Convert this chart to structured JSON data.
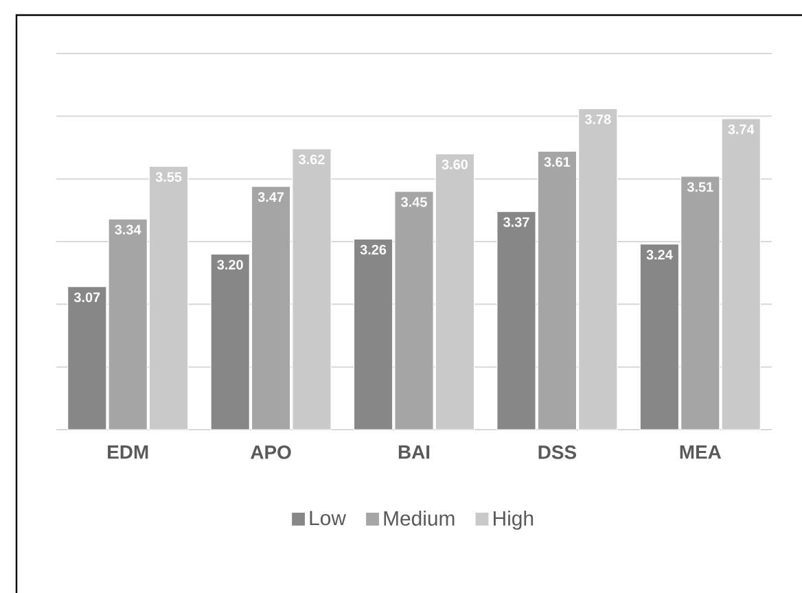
{
  "chart_data": {
    "type": "bar",
    "categories": [
      "EDM",
      "APO",
      "BAI",
      "DSS",
      "MEA"
    ],
    "series": [
      {
        "name": "Low",
        "color": "#878787",
        "values": [
          3.07,
          3.2,
          3.26,
          3.37,
          3.24
        ],
        "value_labels": [
          "3.07",
          "3.20",
          "3.26",
          "3.37",
          "3.24"
        ]
      },
      {
        "name": "Medium",
        "color": "#a5a5a5",
        "values": [
          3.34,
          3.47,
          3.45,
          3.61,
          3.51
        ],
        "value_labels": [
          "3.34",
          "3.47",
          "3.45",
          "3.61",
          "3.51"
        ]
      },
      {
        "name": "High",
        "color": "#c9c9c9",
        "values": [
          3.55,
          3.62,
          3.6,
          3.78,
          3.74
        ],
        "value_labels": [
          "3.55",
          "3.62",
          "3.60",
          "3.78",
          "3.74"
        ]
      }
    ],
    "ylim": [
      2.5,
      4.0
    ],
    "yticks": [
      {
        "value": 2.5,
        "label": null
      },
      {
        "value": 2.75,
        "label": null
      },
      {
        "value": 3.0,
        "label": null
      },
      {
        "value": 3.25,
        "label": null
      },
      {
        "value": 3.5,
        "label": null
      },
      {
        "value": 3.75,
        "label": null
      },
      {
        "value": 4.0,
        "label": null
      }
    ],
    "tick_labels": "x",
    "grid": "y",
    "legend": "bottom"
  }
}
